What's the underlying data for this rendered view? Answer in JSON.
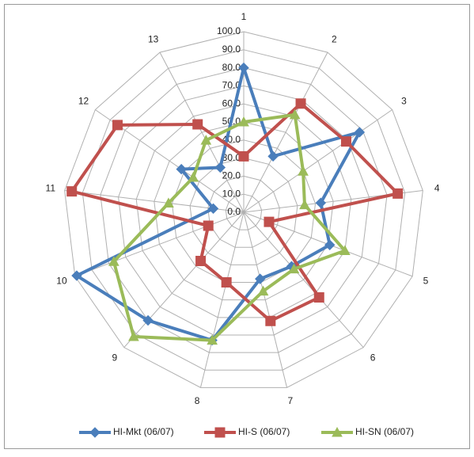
{
  "chart_data": {
    "type": "radar",
    "categories": [
      "1",
      "2",
      "3",
      "4",
      "5",
      "6",
      "7",
      "8",
      "9",
      "10",
      "11",
      "12",
      "13"
    ],
    "series": [
      {
        "name": "HI-Mkt (06/07)",
        "color": "#4a7ebb",
        "marker": "diamond",
        "values": [
          80,
          35,
          78,
          43,
          51,
          40,
          38,
          73,
          80,
          99,
          17,
          42,
          28
        ]
      },
      {
        "name": "HI-S (06/07)",
        "color": "#c0504d",
        "marker": "square",
        "values": [
          31,
          68,
          69,
          86,
          15,
          63,
          62,
          40,
          36,
          21,
          96,
          85,
          55
        ]
      },
      {
        "name": "HI-SN (06/07)",
        "color": "#9bbb59",
        "marker": "triangle",
        "values": [
          50,
          61,
          40,
          34,
          60,
          42,
          45,
          73,
          92,
          77,
          42,
          34,
          45
        ]
      }
    ],
    "rlim": [
      0,
      100
    ],
    "rticks": [
      {
        "value": 0,
        "label": "0.0"
      },
      {
        "value": 10,
        "label": "10.0"
      },
      {
        "value": 20,
        "label": "20.0"
      },
      {
        "value": 30,
        "label": "30.0"
      },
      {
        "value": 40,
        "label": "40.0"
      },
      {
        "value": 50,
        "label": "50.0"
      },
      {
        "value": 60,
        "label": "60.0"
      },
      {
        "value": 70,
        "label": "70.0"
      },
      {
        "value": 80,
        "label": "80.0"
      },
      {
        "value": 90,
        "label": "90.0"
      },
      {
        "value": 100,
        "label": "100.0"
      }
    ],
    "grid": true,
    "legend": "bottom"
  }
}
